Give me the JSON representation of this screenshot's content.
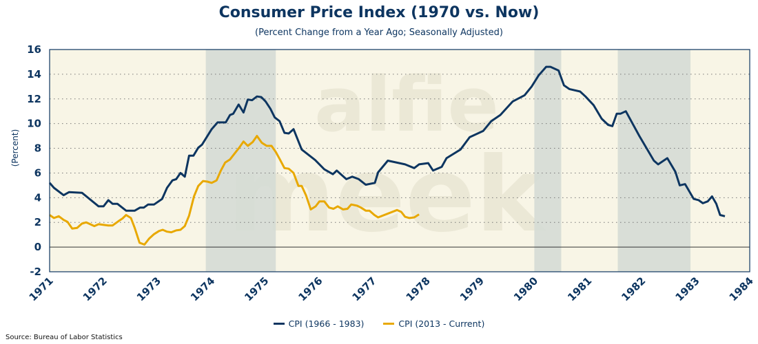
{
  "chart_data": {
    "type": "line",
    "title": "Consumer Price Index (1970 vs. Now)",
    "subtitle": "(Percent Change from a Year Ago; Seasonally Adjusted)",
    "xlabel": "",
    "ylabel": "(Percent)",
    "xlim": [
      1971,
      1984
    ],
    "ylim": [
      -2,
      16
    ],
    "x_ticks": [
      "1971",
      "1972",
      "1973",
      "1974",
      "1975",
      "1976",
      "1977",
      "1978",
      "1979",
      "1980",
      "1981",
      "1982",
      "1983",
      "1984"
    ],
    "y_ticks": [
      "-2",
      "0",
      "2",
      "4",
      "6",
      "8",
      "10",
      "12",
      "14",
      "16"
    ],
    "grid": "horizontal dotted",
    "legend_position": "bottom-center",
    "recessions": [
      [
        1973.9,
        1975.2
      ],
      [
        1980.0,
        1980.5
      ],
      [
        1981.55,
        1982.9
      ]
    ],
    "series": [
      {
        "name": "CPI (1966 - 1983)",
        "color": "#0d3560",
        "points": [
          [
            1971.0,
            5.2
          ],
          [
            1971.08,
            4.8
          ],
          [
            1971.26,
            4.2
          ],
          [
            1971.36,
            4.45
          ],
          [
            1971.6,
            4.4
          ],
          [
            1971.91,
            3.3
          ],
          [
            1972.0,
            3.3
          ],
          [
            1972.09,
            3.8
          ],
          [
            1972.17,
            3.5
          ],
          [
            1972.26,
            3.5
          ],
          [
            1972.42,
            2.95
          ],
          [
            1972.58,
            2.95
          ],
          [
            1972.68,
            3.2
          ],
          [
            1972.75,
            3.2
          ],
          [
            1972.83,
            3.45
          ],
          [
            1972.94,
            3.45
          ],
          [
            1973.09,
            3.9
          ],
          [
            1973.18,
            4.8
          ],
          [
            1973.28,
            5.4
          ],
          [
            1973.35,
            5.5
          ],
          [
            1973.43,
            6.0
          ],
          [
            1973.51,
            5.7
          ],
          [
            1973.59,
            7.4
          ],
          [
            1973.67,
            7.4
          ],
          [
            1973.76,
            8.05
          ],
          [
            1973.83,
            8.3
          ],
          [
            1974.01,
            9.55
          ],
          [
            1974.12,
            10.1
          ],
          [
            1974.27,
            10.1
          ],
          [
            1974.35,
            10.7
          ],
          [
            1974.41,
            10.8
          ],
          [
            1974.51,
            11.55
          ],
          [
            1974.6,
            10.9
          ],
          [
            1974.68,
            11.95
          ],
          [
            1974.76,
            11.9
          ],
          [
            1974.85,
            12.2
          ],
          [
            1974.93,
            12.15
          ],
          [
            1975.01,
            11.8
          ],
          [
            1975.1,
            11.2
          ],
          [
            1975.18,
            10.5
          ],
          [
            1975.27,
            10.2
          ],
          [
            1975.36,
            9.25
          ],
          [
            1975.44,
            9.2
          ],
          [
            1975.53,
            9.55
          ],
          [
            1975.68,
            7.9
          ],
          [
            1975.93,
            7.05
          ],
          [
            1976.1,
            6.3
          ],
          [
            1976.26,
            5.9
          ],
          [
            1976.33,
            6.2
          ],
          [
            1976.51,
            5.5
          ],
          [
            1976.62,
            5.7
          ],
          [
            1976.74,
            5.5
          ],
          [
            1976.87,
            5.05
          ],
          [
            1977.04,
            5.2
          ],
          [
            1977.1,
            6.05
          ],
          [
            1977.28,
            7.0
          ],
          [
            1977.6,
            6.7
          ],
          [
            1977.77,
            6.4
          ],
          [
            1977.86,
            6.7
          ],
          [
            1978.03,
            6.8
          ],
          [
            1978.12,
            6.2
          ],
          [
            1978.28,
            6.5
          ],
          [
            1978.37,
            7.2
          ],
          [
            1978.63,
            7.9
          ],
          [
            1978.8,
            8.9
          ],
          [
            1979.05,
            9.4
          ],
          [
            1979.2,
            10.2
          ],
          [
            1979.37,
            10.7
          ],
          [
            1979.6,
            11.8
          ],
          [
            1979.82,
            12.3
          ],
          [
            1979.95,
            13.0
          ],
          [
            1980.08,
            13.9
          ],
          [
            1980.22,
            14.6
          ],
          [
            1980.3,
            14.6
          ],
          [
            1980.45,
            14.3
          ],
          [
            1980.55,
            13.1
          ],
          [
            1980.65,
            12.8
          ],
          [
            1980.85,
            12.6
          ],
          [
            1980.95,
            12.2
          ],
          [
            1981.1,
            11.5
          ],
          [
            1981.25,
            10.4
          ],
          [
            1981.37,
            9.9
          ],
          [
            1981.45,
            9.8
          ],
          [
            1981.53,
            10.8
          ],
          [
            1981.6,
            10.8
          ],
          [
            1981.7,
            11.0
          ],
          [
            1981.95,
            9.0
          ],
          [
            1982.22,
            7.0
          ],
          [
            1982.3,
            6.7
          ],
          [
            1982.47,
            7.2
          ],
          [
            1982.62,
            6.1
          ],
          [
            1982.7,
            5.0
          ],
          [
            1982.8,
            5.1
          ],
          [
            1982.96,
            3.9
          ],
          [
            1983.05,
            3.8
          ],
          [
            1983.13,
            3.55
          ],
          [
            1983.22,
            3.7
          ],
          [
            1983.3,
            4.1
          ],
          [
            1983.38,
            3.5
          ],
          [
            1983.45,
            2.6
          ],
          [
            1983.54,
            2.5
          ]
        ]
      },
      {
        "name": "CPI (2013 - Current)",
        "color": "#e8a800",
        "points": [
          [
            1971.0,
            2.6
          ],
          [
            1971.08,
            2.35
          ],
          [
            1971.17,
            2.5
          ],
          [
            1971.26,
            2.2
          ],
          [
            1971.33,
            2.05
          ],
          [
            1971.42,
            1.5
          ],
          [
            1971.51,
            1.55
          ],
          [
            1971.6,
            1.9
          ],
          [
            1971.68,
            2.0
          ],
          [
            1971.83,
            1.7
          ],
          [
            1971.91,
            1.85
          ],
          [
            1972.09,
            1.75
          ],
          [
            1972.17,
            1.75
          ],
          [
            1972.28,
            2.1
          ],
          [
            1972.35,
            2.3
          ],
          [
            1972.42,
            2.6
          ],
          [
            1972.51,
            2.35
          ],
          [
            1972.58,
            1.55
          ],
          [
            1972.67,
            0.35
          ],
          [
            1972.76,
            0.2
          ],
          [
            1972.85,
            0.7
          ],
          [
            1972.94,
            1.05
          ],
          [
            1973.03,
            1.3
          ],
          [
            1973.1,
            1.4
          ],
          [
            1973.18,
            1.25
          ],
          [
            1973.26,
            1.2
          ],
          [
            1973.35,
            1.35
          ],
          [
            1973.43,
            1.4
          ],
          [
            1973.51,
            1.7
          ],
          [
            1973.59,
            2.55
          ],
          [
            1973.68,
            4.1
          ],
          [
            1973.76,
            4.95
          ],
          [
            1973.85,
            5.35
          ],
          [
            1973.93,
            5.3
          ],
          [
            1974.01,
            5.2
          ],
          [
            1974.1,
            5.4
          ],
          [
            1974.18,
            6.2
          ],
          [
            1974.26,
            6.85
          ],
          [
            1974.35,
            7.1
          ],
          [
            1974.44,
            7.6
          ],
          [
            1974.52,
            8.05
          ],
          [
            1974.6,
            8.55
          ],
          [
            1974.68,
            8.2
          ],
          [
            1974.77,
            8.5
          ],
          [
            1974.85,
            9.0
          ],
          [
            1974.94,
            8.45
          ],
          [
            1975.03,
            8.2
          ],
          [
            1975.12,
            8.2
          ],
          [
            1975.2,
            7.7
          ],
          [
            1975.27,
            7.15
          ],
          [
            1975.36,
            6.4
          ],
          [
            1975.44,
            6.35
          ],
          [
            1975.53,
            6.0
          ],
          [
            1975.62,
            4.95
          ],
          [
            1975.68,
            4.95
          ],
          [
            1975.76,
            4.2
          ],
          [
            1975.85,
            3.05
          ],
          [
            1975.94,
            3.3
          ],
          [
            1976.01,
            3.7
          ],
          [
            1976.1,
            3.7
          ],
          [
            1976.19,
            3.2
          ],
          [
            1976.27,
            3.1
          ],
          [
            1976.35,
            3.3
          ],
          [
            1976.45,
            3.05
          ],
          [
            1976.53,
            3.1
          ],
          [
            1976.6,
            3.45
          ],
          [
            1976.71,
            3.35
          ],
          [
            1976.78,
            3.2
          ],
          [
            1976.87,
            2.95
          ],
          [
            1976.94,
            2.95
          ],
          [
            1977.03,
            2.6
          ],
          [
            1977.1,
            2.4
          ],
          [
            1977.45,
            3.0
          ],
          [
            1977.53,
            2.85
          ],
          [
            1977.6,
            2.45
          ],
          [
            1977.68,
            2.35
          ],
          [
            1977.77,
            2.4
          ],
          [
            1977.86,
            2.65
          ]
        ]
      }
    ]
  },
  "source": "Source: Bureau of Labor Statistics",
  "watermark": {
    "line1": "alfie",
    "line2": "meek"
  },
  "colors": {
    "background": "#f8f5e6",
    "recession": "#d5dbd5",
    "axis": "#0d3560"
  }
}
